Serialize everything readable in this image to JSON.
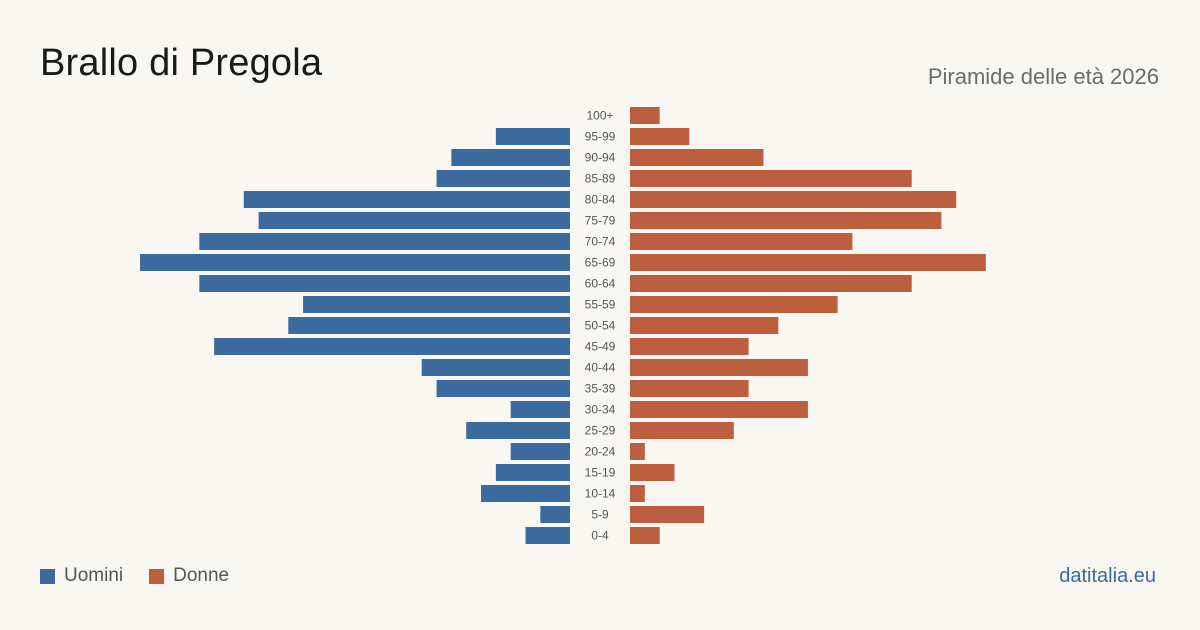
{
  "header": {
    "title": "Brallo di Pregola",
    "subtitle": "Piramide delle età 2026"
  },
  "legend": {
    "men_label": "Uomini",
    "women_label": "Donne"
  },
  "footer": {
    "source": "datitalia.eu"
  },
  "colors": {
    "men": "#3b6a9e",
    "women": "#bb5f3e",
    "tick_text": "#555555"
  },
  "chart_data": {
    "type": "bar",
    "orientation": "horizontal-pyramid",
    "categories": [
      "100+",
      "95-99",
      "90-94",
      "85-89",
      "80-84",
      "75-79",
      "70-74",
      "65-69",
      "60-64",
      "55-59",
      "50-54",
      "45-49",
      "40-44",
      "35-39",
      "30-34",
      "25-29",
      "20-24",
      "15-19",
      "10-14",
      "5-9",
      "0-4"
    ],
    "series": [
      {
        "name": "Uomini",
        "values": [
          0,
          5,
          8,
          9,
          22,
          21,
          25,
          29,
          25,
          18,
          19,
          24,
          10,
          9,
          4,
          7,
          4,
          5,
          6,
          2,
          3
        ]
      },
      {
        "name": "Donne",
        "values": [
          2,
          4,
          9,
          19,
          22,
          21,
          15,
          24,
          19,
          14,
          10,
          8,
          12,
          8,
          12,
          7,
          1,
          3,
          1,
          5,
          2
        ]
      }
    ],
    "max_value": 29,
    "grid": false,
    "legend_position": "bottom-left"
  }
}
